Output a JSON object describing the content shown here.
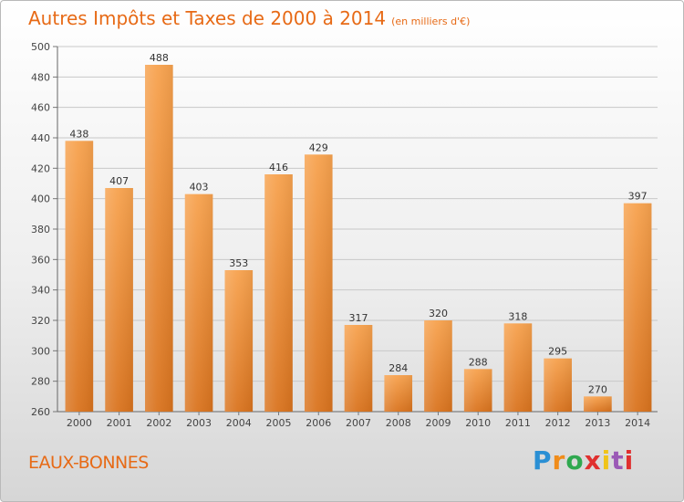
{
  "header": {
    "title": "Autres Impôts et Taxes de 2000 à 2014",
    "unit": "(en milliers d'€)"
  },
  "footer": {
    "commune": "EAUX-BONNES",
    "logo_text": "Proxiti"
  },
  "colors": {
    "accent": "#e76a16",
    "bar_light": "#f7a24e",
    "bar_dark": "#d9731e",
    "grid": "#c8c8c8"
  },
  "chart_data": {
    "type": "bar",
    "title": "Autres Impôts et Taxes de 2000 à 2014",
    "subtitle": "(en milliers d'€)",
    "xlabel": "",
    "ylabel": "",
    "categories": [
      "2000",
      "2001",
      "2002",
      "2003",
      "2004",
      "2005",
      "2006",
      "2007",
      "2008",
      "2009",
      "2010",
      "2011",
      "2012",
      "2013",
      "2014"
    ],
    "values": [
      438,
      407,
      488,
      403,
      353,
      416,
      429,
      317,
      284,
      320,
      288,
      318,
      295,
      270,
      397
    ],
    "ylim": [
      260,
      500
    ],
    "yticks": [
      260,
      280,
      300,
      320,
      340,
      360,
      380,
      400,
      420,
      440,
      460,
      480,
      500
    ],
    "grid": true,
    "data_labels": true
  }
}
